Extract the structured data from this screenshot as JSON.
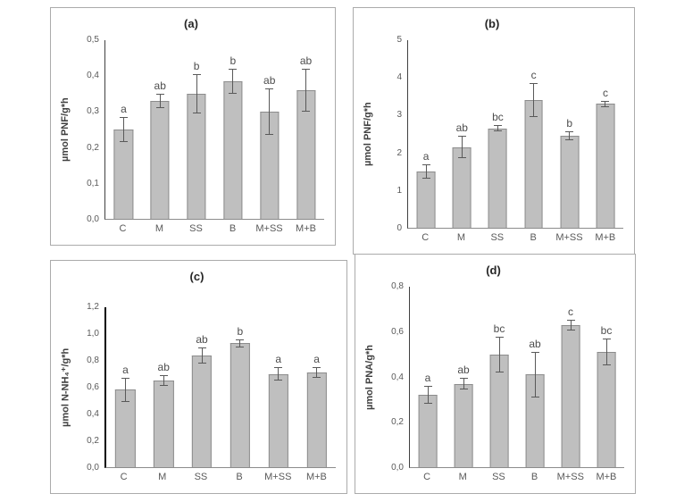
{
  "colors": {
    "bar_fill": "#bfbfbf",
    "bar_border": "#8c8c8c",
    "axis": "#595959",
    "text": "#404040",
    "panel_border": "#ababab"
  },
  "chart_data": [
    {
      "type": "bar",
      "title": "(a)",
      "ylabel": "µmol PNF/g*h",
      "xlabel": "",
      "ylim": [
        0,
        0.5
      ],
      "yticks": [
        "0,0",
        "0,1",
        "0,2",
        "0,3",
        "0,4",
        "0,5"
      ],
      "categories": [
        "C",
        "M",
        "SS",
        "B",
        "M+SS",
        "M+B"
      ],
      "values": [
        0.25,
        0.33,
        0.35,
        0.385,
        0.3,
        0.36
      ],
      "errors": [
        0.035,
        0.02,
        0.055,
        0.035,
        0.065,
        0.06
      ],
      "letters": [
        "a",
        "ab",
        "b",
        "b",
        "ab",
        "ab"
      ],
      "grid": false,
      "legend": false
    },
    {
      "type": "bar",
      "title": "(b)",
      "ylabel": "µmol PNF/g*h",
      "xlabel": "",
      "ylim": [
        0,
        5
      ],
      "yticks": [
        "0",
        "1",
        "2",
        "3",
        "4",
        "5"
      ],
      "categories": [
        "C",
        "M",
        "SS",
        "B",
        "M+SS",
        "M+B"
      ],
      "values": [
        1.5,
        2.15,
        2.65,
        3.4,
        2.45,
        3.3
      ],
      "errors": [
        0.2,
        0.3,
        0.08,
        0.45,
        0.12,
        0.08
      ],
      "letters": [
        "a",
        "ab",
        "bc",
        "c",
        "b",
        "c"
      ],
      "grid": false,
      "legend": false
    },
    {
      "type": "bar",
      "title": "(c)",
      "ylabel": "µmol N-NH₄⁺/g*h",
      "xlabel": "",
      "ylim": [
        0,
        1.2
      ],
      "yticks": [
        "0,0",
        "0,2",
        "0,4",
        "0,6",
        "0,8",
        "1,0",
        "1,2"
      ],
      "categories": [
        "C",
        "M",
        "SS",
        "B",
        "M+SS",
        "M+B"
      ],
      "values": [
        0.58,
        0.65,
        0.84,
        0.93,
        0.7,
        0.71
      ],
      "errors": [
        0.09,
        0.04,
        0.06,
        0.03,
        0.05,
        0.04
      ],
      "letters": [
        "a",
        "ab",
        "ab",
        "b",
        "a",
        "a"
      ],
      "grid": false,
      "legend": false
    },
    {
      "type": "bar",
      "title": "(d)",
      "ylabel": "µmol PNA/g*h",
      "xlabel": "",
      "ylim": [
        0,
        0.8
      ],
      "yticks": [
        "0,0",
        "0,2",
        "0,4",
        "0,6",
        "0,8"
      ],
      "categories": [
        "C",
        "M",
        "SS",
        "B",
        "M+SS",
        "M+B"
      ],
      "values": [
        0.32,
        0.37,
        0.5,
        0.41,
        0.63,
        0.51
      ],
      "errors": [
        0.04,
        0.025,
        0.08,
        0.1,
        0.025,
        0.06
      ],
      "letters": [
        "a",
        "ab",
        "bc",
        "ab",
        "c",
        "bc"
      ],
      "grid": false,
      "legend": false
    }
  ]
}
